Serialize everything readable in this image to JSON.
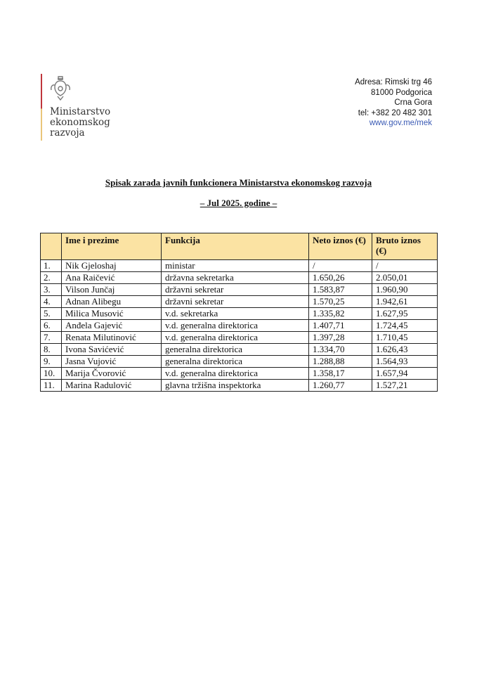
{
  "header": {
    "logo_text": [
      "Ministarstvo",
      "ekonomskog",
      "razvoja"
    ],
    "address": [
      "Adresa: Rimski trg 46",
      "81000 Podgorica",
      "Crna Gora",
      "tel: +382 20 482 301"
    ],
    "website": "www.gov.me/mek"
  },
  "title": "Spisak zarada javnih funkcionera Ministarstva ekonomskog razvoja",
  "subtitle": "– Jul 2025. godine –",
  "table": {
    "columns": [
      "",
      "Ime i prezime",
      "Funkcija",
      "Neto iznos (€)",
      "Bruto iznos (€)"
    ],
    "rows": [
      [
        "1.",
        "Nik Gjeloshaj",
        "ministar",
        "/",
        "/"
      ],
      [
        "2.",
        "Ana Raičević",
        "državna sekretarka",
        "1.650,26",
        "2.050,01"
      ],
      [
        "3.",
        "Vilson Junčaj",
        "državni sekretar",
        "1.583,87",
        "1.960,90"
      ],
      [
        "4.",
        "Adnan Alibegu",
        "državni sekretar",
        "1.570,25",
        "1.942,61"
      ],
      [
        "5.",
        "Milica Musović",
        "v.d. sekretarka",
        "1.335,82",
        "1.627,95"
      ],
      [
        "6.",
        "Anđela Gajević",
        "v.d. generalna direktorica",
        "1.407,71",
        "1.724,45"
      ],
      [
        "7.",
        "Renata Milutinović",
        "v.d. generalna direktorica",
        "1.397,28",
        "1.710,45"
      ],
      [
        "8.",
        "Ivona Savićević",
        "generalna direktorica",
        "1.334,70",
        "1.626,43"
      ],
      [
        "9.",
        "Jasna Vujović",
        "generalna direktorica",
        "1.288,88",
        "1.564,93"
      ],
      [
        "10.",
        "Marija Čvorović",
        "v.d. generalna direktorica",
        "1.358,17",
        "1.657,94"
      ],
      [
        "11.",
        "Marina Radulović",
        "glavna tržišna inspektorka",
        "1.260,77",
        "1.527,21"
      ]
    ]
  },
  "colors": {
    "header_bg": "#fbe3a3",
    "logo_red": "#c0363c",
    "logo_gold": "#e9c67a",
    "link": "#3b5bb5"
  }
}
